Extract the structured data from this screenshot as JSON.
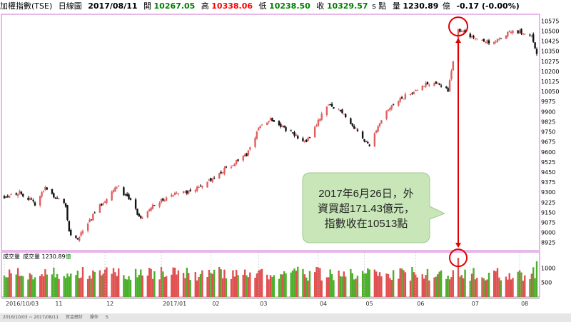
{
  "header": {
    "title": "加權指數(TSE)",
    "period": "日線圖",
    "date": "2017/08/11",
    "open_label": "開",
    "open_value": "10267.05",
    "high_label": "高",
    "high_value": "10338.06",
    "low_label": "低",
    "low_value": "10238.50",
    "close_label": "收",
    "close_value": "10329.57",
    "close_unit": "s 點",
    "volume_label": "量",
    "volume_value": "1230.89",
    "volume_unit": "億",
    "change": "-0.17 (-0.00%)"
  },
  "volume_panel": {
    "label": "成交量",
    "reading": "成交量 1230.89",
    "reading_unit": "億"
  },
  "callout": {
    "lines": [
      "2017年6月26日，外",
      "資買超171.43億元，",
      "指數收在10513點"
    ]
  },
  "footer": {
    "items": [
      "2016/10/03 ~ 2017/08/11",
      "資金總計",
      "操作",
      "S"
    ]
  },
  "colors": {
    "up": "#e06060",
    "down": "#111111",
    "vol_up": "#e05050",
    "vol_down": "#4caf2a",
    "frame": "#d070d0",
    "annotation": "#e00000",
    "callout_fill": "#c8e6b8",
    "callout_stroke": "#a0c890"
  },
  "chart_data": [
    {
      "type": "candlestick",
      "title": "加權指數(TSE) 日線圖",
      "y_ticks": [
        8925,
        9000,
        9075,
        9150,
        9225,
        9300,
        9375,
        9450,
        9525,
        9600,
        9675,
        9750,
        9825,
        9900,
        9975,
        10050,
        10125,
        10200,
        10275,
        10350,
        10425,
        10500,
        10575
      ],
      "ylim": [
        8865,
        10625
      ],
      "x_start": "2016-10-03",
      "x_end": "2017-08-11",
      "x_tick_labels": [
        {
          "date": "2016-10-03",
          "label": "2016/10/03"
        },
        {
          "date": "2016-11-01",
          "label": "11"
        },
        {
          "date": "2016-12-01",
          "label": "12"
        },
        {
          "date": "2017-01-03",
          "label": "2017/01"
        },
        {
          "date": "2017-02-01",
          "label": "02"
        },
        {
          "date": "2017-03-01",
          "label": "03"
        },
        {
          "date": "2017-04-05",
          "label": "04"
        },
        {
          "date": "2017-05-02",
          "label": "05"
        },
        {
          "date": "2017-06-01",
          "label": "06"
        },
        {
          "date": "2017-07-03",
          "label": "07"
        },
        {
          "date": "2017-08-01",
          "label": "08"
        }
      ],
      "path_dates": [
        "2016-10-03",
        "2016-10-12",
        "2016-10-21",
        "2016-10-27",
        "2016-11-08",
        "2016-11-10",
        "2016-11-15",
        "2016-11-25",
        "2016-12-08",
        "2016-12-15",
        "2016-12-22",
        "2016-12-28",
        "2017-01-13",
        "2017-01-20",
        "2017-02-01",
        "2017-02-13",
        "2017-02-22",
        "2017-03-01",
        "2017-03-08",
        "2017-03-22",
        "2017-03-29",
        "2017-04-10",
        "2017-04-19",
        "2017-04-26",
        "2017-05-05",
        "2017-05-15",
        "2017-05-23",
        "2017-06-05",
        "2017-06-14",
        "2017-06-20",
        "2017-06-26",
        "2017-07-05",
        "2017-07-17",
        "2017-07-27",
        "2017-08-08",
        "2017-08-11"
      ],
      "path_closes": [
        9270,
        9300,
        9215,
        9330,
        9200,
        9000,
        8950,
        9150,
        9350,
        9250,
        9100,
        9200,
        9300,
        9300,
        9400,
        9500,
        9575,
        9775,
        9850,
        9725,
        9670,
        9950,
        9900,
        9780,
        9650,
        9900,
        9990,
        10100,
        10125,
        10050,
        10513,
        10450,
        10410,
        10500,
        10480,
        10329.57
      ],
      "highlight": {
        "date": "2017-06-26",
        "close": 10513
      }
    },
    {
      "type": "bar",
      "title": "成交量",
      "unit": "億",
      "y_ticks": [
        500,
        1000
      ],
      "ylim": [
        0,
        1550
      ],
      "volume_highlight": {
        "date": "2017-06-26",
        "value": 1350
      },
      "last_value": 1230.89
    }
  ]
}
